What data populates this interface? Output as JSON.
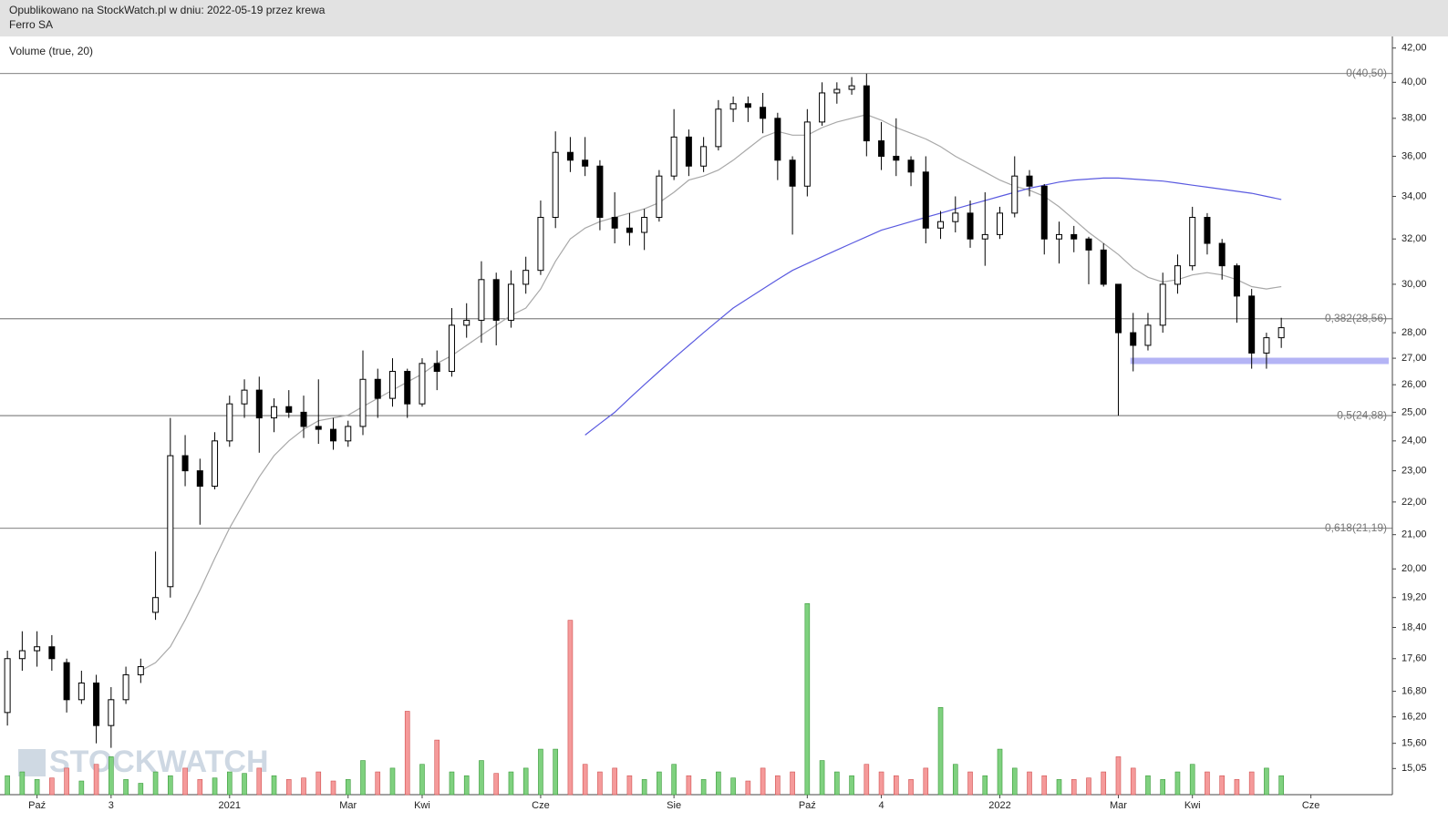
{
  "header": {
    "line1": "Opublikowano na StockWatch.pl w dniu: 2022-05-19 przez krewa",
    "line2": "Ferro SA"
  },
  "chart_data": {
    "type": "candlestick",
    "indicator": "Volume (true, 20)",
    "watermark": "STOCKWATCH",
    "log": true,
    "ylim": [
      14.5,
      42.7
    ],
    "yticks": [
      {
        "value": 42,
        "label": "42,00"
      },
      {
        "value": 40,
        "label": "40,00"
      },
      {
        "value": 38,
        "label": "38,00"
      },
      {
        "value": 36,
        "label": "36,00"
      },
      {
        "value": 34,
        "label": "34,00"
      },
      {
        "value": 32,
        "label": "32,00"
      },
      {
        "value": 30,
        "label": "30,00"
      },
      {
        "value": 28,
        "label": "28,00"
      },
      {
        "value": 27,
        "label": "27,00"
      },
      {
        "value": 26,
        "label": "26,00"
      },
      {
        "value": 25,
        "label": "25,00"
      },
      {
        "value": 24,
        "label": "24,00"
      },
      {
        "value": 23,
        "label": "23,00"
      },
      {
        "value": 22,
        "label": "22,00"
      },
      {
        "value": 21,
        "label": "21,00"
      },
      {
        "value": 20,
        "label": "20,00"
      },
      {
        "value": 19.2,
        "label": "19,20"
      },
      {
        "value": 18.4,
        "label": "18,40"
      },
      {
        "value": 17.6,
        "label": "17,60"
      },
      {
        "value": 16.8,
        "label": "16,80"
      },
      {
        "value": 16.2,
        "label": "16,20"
      },
      {
        "value": 15.6,
        "label": "15,60"
      },
      {
        "value": 15.05,
        "label": "15,05"
      }
    ],
    "y2lim": [
      0,
      1000
    ],
    "categories": [
      null,
      null,
      "Paź",
      null,
      null,
      null,
      null,
      "3",
      null,
      null,
      null,
      null,
      null,
      null,
      null,
      "2021",
      null,
      null,
      null,
      null,
      null,
      null,
      null,
      "Mar",
      null,
      null,
      null,
      null,
      "Kwi",
      null,
      null,
      null,
      null,
      null,
      null,
      null,
      "Cze",
      null,
      null,
      null,
      null,
      null,
      null,
      null,
      null,
      "Sie",
      null,
      null,
      null,
      null,
      null,
      null,
      null,
      null,
      "Paź",
      null,
      null,
      null,
      null,
      "4",
      null,
      null,
      null,
      null,
      null,
      null,
      null,
      "2022",
      null,
      null,
      null,
      null,
      null,
      null,
      null,
      "Mar",
      null,
      null,
      null,
      null,
      "Kwi",
      null,
      null,
      null,
      null,
      null,
      null,
      null,
      "Cze",
      null,
      null,
      null,
      null,
      null
    ],
    "open": [
      16.3,
      17.6,
      17.8,
      17.9,
      17.5,
      16.6,
      17.0,
      16.0,
      16.6,
      17.2,
      18.8,
      19.5,
      23.5,
      23.0,
      22.5,
      24.0,
      25.3,
      25.8,
      24.8,
      25.2,
      25.0,
      24.5,
      24.4,
      24.0,
      24.5,
      26.2,
      25.5,
      26.5,
      25.3,
      26.8,
      26.5,
      28.3,
      28.5,
      30.2,
      28.5,
      30.0,
      30.6,
      33.0,
      36.2,
      35.8,
      35.5,
      33.0,
      32.5,
      32.3,
      33.0,
      35.0,
      37.0,
      35.5,
      36.5,
      38.5,
      38.8,
      38.6,
      38.0,
      35.8,
      34.5,
      37.8,
      39.4,
      39.6,
      39.8,
      36.8,
      36.0,
      35.8,
      35.2,
      32.5,
      32.8,
      33.2,
      32.0,
      32.2,
      33.2,
      35.0,
      34.5,
      32.0,
      32.2,
      32.0,
      31.5,
      30.0,
      28.0,
      27.5,
      28.3,
      30.0,
      30.8,
      33.0,
      31.8,
      30.8,
      29.5,
      27.2,
      27.8,
      null,
      null,
      null,
      null,
      null,
      null,
      null
    ],
    "high": [
      17.8,
      18.3,
      18.3,
      18.2,
      17.6,
      17.3,
      17.2,
      16.9,
      17.4,
      17.6,
      20.5,
      24.8,
      24.2,
      23.4,
      24.3,
      25.6,
      26.2,
      26.3,
      25.5,
      25.8,
      25.6,
      26.2,
      24.8,
      24.7,
      27.3,
      26.6,
      27.0,
      26.6,
      27.0,
      27.3,
      29.0,
      29.2,
      31.0,
      30.5,
      30.6,
      31.2,
      33.8,
      37.3,
      37.0,
      37.0,
      35.8,
      34.2,
      33.2,
      33.4,
      35.3,
      38.5,
      37.4,
      37.0,
      39.0,
      39.2,
      39.2,
      39.4,
      38.3,
      36.0,
      38.5,
      40.0,
      40.0,
      40.3,
      40.5,
      37.8,
      38.0,
      36.0,
      36.0,
      33.3,
      34.0,
      33.8,
      34.2,
      33.5,
      36.0,
      35.3,
      34.6,
      32.8,
      32.6,
      32.1,
      31.8,
      30.0,
      28.8,
      28.8,
      30.5,
      31.3,
      33.5,
      33.2,
      32.0,
      30.9,
      29.8,
      28.0,
      28.6,
      null,
      null,
      null,
      null,
      null,
      null,
      null
    ],
    "low": [
      16.0,
      17.3,
      17.4,
      17.3,
      16.3,
      16.5,
      15.6,
      15.5,
      16.5,
      17.0,
      18.6,
      19.2,
      22.5,
      21.3,
      22.4,
      23.8,
      24.8,
      23.6,
      24.3,
      24.8,
      24.1,
      23.9,
      23.7,
      23.8,
      24.2,
      24.8,
      25.2,
      24.8,
      25.2,
      25.8,
      26.3,
      27.8,
      27.6,
      27.5,
      28.2,
      29.6,
      30.4,
      32.5,
      35.2,
      35.0,
      32.4,
      31.8,
      31.7,
      31.5,
      32.8,
      34.8,
      35.0,
      35.2,
      36.3,
      37.8,
      37.8,
      37.2,
      34.8,
      32.2,
      34.0,
      37.6,
      38.8,
      39.3,
      36.0,
      35.3,
      35.0,
      34.5,
      31.8,
      32.0,
      32.3,
      31.6,
      30.8,
      32.0,
      33.0,
      34.0,
      31.3,
      30.9,
      31.4,
      30.0,
      29.9,
      24.88,
      26.5,
      27.3,
      28.0,
      29.6,
      30.6,
      31.3,
      30.2,
      28.4,
      26.6,
      26.6,
      27.4,
      null,
      null,
      null,
      null,
      null,
      null,
      null
    ],
    "close": [
      17.6,
      17.8,
      17.9,
      17.6,
      16.6,
      17.0,
      16.0,
      16.6,
      17.2,
      17.4,
      19.2,
      23.5,
      23.0,
      22.5,
      24.0,
      25.3,
      25.8,
      24.8,
      25.2,
      25.0,
      24.5,
      24.4,
      24.0,
      24.5,
      26.2,
      25.5,
      26.5,
      25.3,
      26.8,
      26.5,
      28.3,
      28.5,
      30.2,
      28.5,
      30.0,
      30.6,
      33.0,
      36.2,
      35.8,
      35.5,
      33.0,
      32.5,
      32.3,
      33.0,
      35.0,
      37.0,
      35.5,
      36.5,
      38.5,
      38.8,
      38.6,
      38.0,
      35.8,
      34.5,
      37.8,
      39.4,
      39.6,
      39.8,
      36.8,
      36.0,
      35.8,
      35.2,
      32.5,
      32.8,
      33.2,
      32.0,
      32.2,
      33.2,
      35.0,
      34.5,
      32.0,
      32.2,
      32.0,
      31.5,
      30.0,
      28.0,
      27.5,
      28.3,
      30.0,
      30.8,
      33.0,
      31.8,
      30.8,
      29.5,
      27.2,
      27.8,
      28.2,
      null,
      null,
      null,
      null,
      null,
      null,
      null
    ],
    "volume": [
      25,
      30,
      20,
      22,
      35,
      18,
      40,
      50,
      20,
      15,
      30,
      25,
      35,
      20,
      22,
      30,
      28,
      35,
      25,
      20,
      22,
      30,
      18,
      20,
      45,
      30,
      35,
      110,
      40,
      72,
      30,
      25,
      45,
      28,
      30,
      35,
      60,
      60,
      230,
      40,
      30,
      35,
      25,
      20,
      30,
      40,
      25,
      20,
      30,
      22,
      18,
      35,
      25,
      30,
      252,
      45,
      30,
      25,
      40,
      30,
      25,
      20,
      35,
      115,
      40,
      30,
      25,
      60,
      35,
      30,
      25,
      20,
      20,
      22,
      30,
      50,
      35,
      25,
      20,
      30,
      40,
      30,
      25,
      20,
      30,
      35,
      25,
      null,
      null,
      null,
      null,
      null,
      null,
      null
    ],
    "up_color": "#7fd17f",
    "down_color": "#f59a9a",
    "lines": [
      {
        "color": "#a8a8a8",
        "values": [
          null,
          null,
          null,
          null,
          null,
          null,
          null,
          null,
          null,
          17.3,
          17.5,
          17.9,
          18.6,
          19.4,
          20.3,
          21.2,
          22.0,
          22.8,
          23.5,
          24.0,
          24.4,
          24.7,
          24.8,
          24.9,
          25.2,
          25.5,
          25.8,
          26.1,
          26.4,
          26.8,
          27.1,
          27.5,
          27.9,
          28.3,
          28.7,
          29.0,
          29.8,
          31.0,
          32.0,
          32.5,
          32.8,
          33.0,
          33.2,
          33.4,
          33.7,
          34.2,
          34.8,
          35.0,
          35.3,
          35.8,
          36.4,
          37.0,
          37.3,
          37.1,
          37.1,
          37.5,
          37.8,
          38.0,
          38.2,
          37.9,
          37.5,
          37.2,
          36.9,
          36.5,
          36.0,
          35.6,
          35.2,
          34.8,
          34.5,
          34.3,
          34.0,
          33.5,
          32.9,
          32.3,
          31.8,
          31.3,
          30.7,
          30.3,
          30.1,
          30.2,
          30.4,
          30.5,
          30.4,
          30.2,
          29.9,
          29.8,
          29.9,
          null,
          null,
          null,
          null,
          null,
          null,
          null
        ]
      },
      {
        "color": "#5a5ae0",
        "values": [
          null,
          null,
          null,
          null,
          null,
          null,
          null,
          null,
          null,
          null,
          null,
          null,
          null,
          null,
          null,
          null,
          null,
          null,
          null,
          null,
          null,
          null,
          null,
          null,
          null,
          null,
          null,
          null,
          null,
          null,
          null,
          null,
          null,
          null,
          null,
          null,
          null,
          null,
          null,
          24.2,
          24.6,
          25.0,
          25.5,
          26.0,
          26.5,
          27.0,
          27.5,
          28.0,
          28.5,
          29.0,
          29.4,
          29.8,
          30.2,
          30.6,
          30.9,
          31.2,
          31.5,
          31.8,
          32.1,
          32.4,
          32.6,
          32.8,
          33.0,
          33.2,
          33.4,
          33.6,
          33.8,
          34.0,
          34.2,
          34.4,
          34.55,
          34.7,
          34.8,
          34.85,
          34.9,
          34.9,
          34.85,
          34.8,
          34.75,
          34.65,
          34.55,
          34.45,
          34.35,
          34.25,
          34.15,
          34.0,
          33.85,
          null,
          null,
          null,
          null,
          null,
          null,
          null
        ]
      }
    ],
    "levels": [
      {
        "value": 40.5,
        "label": "0(40,50)"
      },
      {
        "value": 28.56,
        "label": "0,382(28,56)"
      },
      {
        "value": 24.88,
        "label": "0,5(24,88)"
      },
      {
        "value": 21.19,
        "label": "0,618(21,19)"
      }
    ],
    "zone": {
      "value": 26.9,
      "color": "#b4b4f5"
    }
  }
}
